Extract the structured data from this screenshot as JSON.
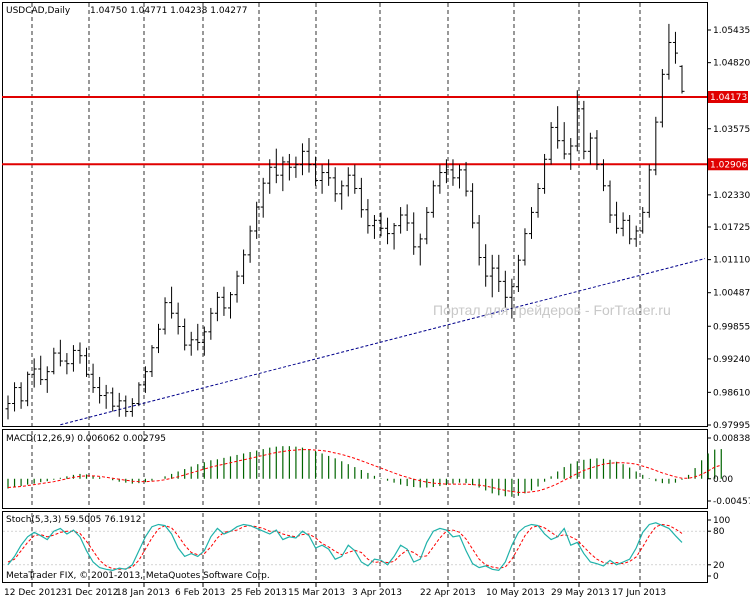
{
  "header": {
    "symbol_tf": "USDCAD,Daily",
    "ohlc": "1.04750 1.04771 1.04238 1.04277"
  },
  "watermark": "Портал для трейдеров - ForTrader.ru",
  "copyright": "MetaTrader FIX, © 2001-2013, MetaQuotes Software Corp.",
  "colors": {
    "background": "#ffffff",
    "bars": "#000000",
    "hlines": "#e00000",
    "trendline": "#00008b",
    "macd_hist": "#006400",
    "macd_signal": "#ff0000",
    "stoch_main": "#20b2aa",
    "stoch_signal": "#ff0000",
    "watermark": "#c8c8c8"
  },
  "chart_data": [
    {
      "type": "candlestick",
      "name": "USDCAD,Daily",
      "x_labels": [
        "12 Dec 2012",
        "31 Dec 2012",
        "18 Jan 2013",
        "6 Feb 2013",
        "25 Feb 2013",
        "15 Mar 2013",
        "3 Apr 2013",
        "22 Apr 2013",
        "10 May 2013",
        "29 May 2013",
        "17 Jun 2013"
      ],
      "y_ticks": [
        "1.05435",
        "1.04820",
        "1.03575",
        "1.02330",
        "1.01725",
        "1.01110",
        "1.00487",
        "0.99855",
        "0.99240",
        "0.98610",
        "0.97995"
      ],
      "ylim": [
        0.97995,
        1.05435
      ],
      "grid": true,
      "ohlc": [
        [
          0.983,
          0.9855,
          0.981,
          0.984
        ],
        [
          0.984,
          0.988,
          0.9825,
          0.987
        ],
        [
          0.987,
          0.988,
          0.983,
          0.9845
        ],
        [
          0.9845,
          0.99,
          0.9835,
          0.9895
        ],
        [
          0.9895,
          0.9925,
          0.987,
          0.9905
        ],
        [
          0.9905,
          0.993,
          0.9875,
          0.9885
        ],
        [
          0.9885,
          0.991,
          0.986,
          0.99
        ],
        [
          0.99,
          0.9945,
          0.9895,
          0.9935
        ],
        [
          0.9935,
          0.996,
          0.991,
          0.992
        ],
        [
          0.992,
          0.9935,
          0.9895,
          0.9915
        ],
        [
          0.9915,
          0.995,
          0.99,
          0.994
        ],
        [
          0.994,
          0.9955,
          0.9915,
          0.993
        ],
        [
          0.993,
          0.9945,
          0.989,
          0.9895
        ],
        [
          0.9895,
          0.9915,
          0.986,
          0.987
        ],
        [
          0.987,
          0.989,
          0.984,
          0.9855
        ],
        [
          0.9855,
          0.9875,
          0.983,
          0.986
        ],
        [
          0.986,
          0.987,
          0.9825,
          0.9835
        ],
        [
          0.9835,
          0.986,
          0.9815,
          0.9845
        ],
        [
          0.9845,
          0.9855,
          0.9815,
          0.9825
        ],
        [
          0.9825,
          0.985,
          0.9815,
          0.984
        ],
        [
          0.984,
          0.988,
          0.9835,
          0.9875
        ],
        [
          0.9875,
          0.991,
          0.986,
          0.99
        ],
        [
          0.99,
          0.995,
          0.989,
          0.9945
        ],
        [
          0.9945,
          0.999,
          0.9935,
          0.998
        ],
        [
          0.998,
          1.004,
          0.997,
          1.003
        ],
        [
          1.003,
          1.006,
          1.0,
          1.001
        ],
        [
          1.001,
          1.003,
          0.997,
          0.9985
        ],
        [
          0.9985,
          1.0,
          0.994,
          0.995
        ],
        [
          0.995,
          0.9975,
          0.993,
          0.996
        ],
        [
          0.996,
          0.999,
          0.994,
          0.9955
        ],
        [
          0.9955,
          0.9985,
          0.993,
          0.9975
        ],
        [
          0.9975,
          1.002,
          0.996,
          1.001
        ],
        [
          1.001,
          1.005,
          0.9995,
          1.004
        ],
        [
          1.004,
          1.006,
          1.0005,
          1.002
        ],
        [
          1.002,
          1.005,
          1.0,
          1.0045
        ],
        [
          1.0045,
          1.009,
          1.003,
          1.008
        ],
        [
          1.008,
          1.013,
          1.0065,
          1.012
        ],
        [
          1.012,
          1.0175,
          1.0105,
          1.0165
        ],
        [
          1.0165,
          1.022,
          1.015,
          1.021
        ],
        [
          1.021,
          1.0265,
          1.019,
          1.0255
        ],
        [
          1.0255,
          1.03,
          1.0235,
          1.0285
        ],
        [
          1.0285,
          1.032,
          1.0255,
          1.027
        ],
        [
          1.027,
          1.0305,
          1.024,
          1.0295
        ],
        [
          1.0295,
          1.031,
          1.026,
          1.0285
        ],
        [
          1.0285,
          1.0305,
          1.0265,
          1.029
        ],
        [
          1.029,
          1.033,
          1.027,
          1.0315
        ],
        [
          1.0315,
          1.034,
          1.0275,
          1.029
        ],
        [
          1.029,
          1.0305,
          1.025,
          1.026
        ],
        [
          1.026,
          1.029,
          1.0235,
          1.0275
        ],
        [
          1.0275,
          1.03,
          1.025,
          1.0265
        ],
        [
          1.0265,
          1.0285,
          1.022,
          1.0235
        ],
        [
          1.0235,
          1.026,
          1.0205,
          1.025
        ],
        [
          1.025,
          1.0285,
          1.023,
          1.027
        ],
        [
          1.027,
          1.029,
          1.0235,
          1.0245
        ],
        [
          1.0245,
          1.0265,
          1.019,
          1.0205
        ],
        [
          1.0205,
          1.0225,
          1.016,
          1.0175
        ],
        [
          1.0175,
          1.0195,
          1.015,
          1.0185
        ],
        [
          1.0185,
          1.02,
          1.0155,
          1.017
        ],
        [
          1.017,
          1.019,
          1.014,
          1.016
        ],
        [
          1.016,
          1.018,
          1.013,
          1.0175
        ],
        [
          1.0175,
          1.021,
          1.016,
          1.0195
        ],
        [
          1.0195,
          1.0215,
          1.0165,
          1.018
        ],
        [
          1.018,
          1.02,
          1.012,
          1.0135
        ],
        [
          1.0135,
          1.016,
          1.01,
          1.015
        ],
        [
          1.015,
          1.021,
          1.014,
          1.02
        ],
        [
          1.02,
          1.026,
          1.019,
          1.025
        ],
        [
          1.025,
          1.029,
          1.0235,
          1.0275
        ],
        [
          1.0275,
          1.03,
          1.0255,
          1.028
        ],
        [
          1.028,
          1.03,
          1.025,
          1.0265
        ],
        [
          1.0265,
          1.029,
          1.0245,
          1.028
        ],
        [
          1.028,
          1.0295,
          1.023,
          1.024
        ],
        [
          1.024,
          1.0255,
          1.017,
          1.018
        ],
        [
          1.018,
          1.0195,
          1.01,
          1.0115
        ],
        [
          1.0115,
          1.014,
          1.006,
          1.008
        ],
        [
          1.008,
          1.012,
          1.004,
          1.0095
        ],
        [
          1.0095,
          1.012,
          1.005,
          1.007
        ],
        [
          1.007,
          1.009,
          1.002,
          1.004
        ],
        [
          1.004,
          1.0075,
          1.0,
          1.006
        ],
        [
          1.006,
          1.012,
          1.005,
          1.011
        ],
        [
          1.011,
          1.017,
          1.01,
          1.016
        ],
        [
          1.016,
          1.021,
          1.015,
          1.02
        ],
        [
          1.02,
          1.0255,
          1.019,
          1.0245
        ],
        [
          1.0245,
          1.031,
          1.0235,
          1.03
        ],
        [
          1.03,
          1.037,
          1.029,
          1.036
        ],
        [
          1.036,
          1.04,
          1.032,
          1.0335
        ],
        [
          1.0335,
          1.037,
          1.03,
          1.031
        ],
        [
          1.031,
          1.034,
          1.028,
          1.0325
        ],
        [
          1.0325,
          1.043,
          1.0315,
          1.0395
        ],
        [
          1.0395,
          1.041,
          1.03,
          1.0315
        ],
        [
          1.0315,
          1.035,
          1.029,
          1.034
        ],
        [
          1.034,
          1.0355,
          1.028,
          1.029
        ],
        [
          1.029,
          1.03,
          1.024,
          1.025
        ],
        [
          1.025,
          1.026,
          1.018,
          1.0195
        ],
        [
          1.0195,
          1.022,
          1.016,
          1.017
        ],
        [
          1.017,
          1.02,
          1.0155,
          1.0185
        ],
        [
          1.0185,
          1.0195,
          1.014,
          1.015
        ],
        [
          1.015,
          1.0175,
          1.0135,
          1.0165
        ],
        [
          1.0165,
          1.021,
          1.016,
          1.02
        ],
        [
          1.02,
          1.029,
          1.019,
          1.028
        ],
        [
          1.028,
          1.038,
          1.027,
          1.037
        ],
        [
          1.037,
          1.047,
          1.036,
          1.046
        ],
        [
          1.046,
          1.0555,
          1.045,
          1.052
        ],
        [
          1.052,
          1.054,
          1.048,
          1.05
        ],
        [
          1.0475,
          1.0477,
          1.0424,
          1.0428
        ]
      ],
      "horizontal_lines": [
        {
          "label": "1.04173",
          "value": 1.04173
        },
        {
          "label": "1.02906",
          "value": 1.02906
        }
      ],
      "trendline": {
        "style": "dotted",
        "from": {
          "bar": 8,
          "price": 0.98
        },
        "to": {
          "bar": "end",
          "price": 1.0113
        }
      }
    },
    {
      "type": "bar+line",
      "name": "MACD(12,26,9) 0.006062 0.002795",
      "title_text": "MACD(12,26,9) 0.006062 0.002795",
      "y_ticks": [
        "0.00838",
        "0.00",
        "-0.00457"
      ],
      "ylim": [
        -0.00457,
        0.00838
      ],
      "histogram": [
        -0.002,
        -0.0018,
        -0.0015,
        -0.0012,
        -0.001,
        -0.0007,
        -0.0005,
        -0.0002,
        0.0002,
        0.0005,
        0.0008,
        0.001,
        0.0009,
        0.0006,
        0.0003,
        0.0,
        -0.0003,
        -0.0006,
        -0.0008,
        -0.001,
        -0.0009,
        -0.0007,
        -0.0004,
        0.0,
        0.0005,
        0.001,
        0.0015,
        0.002,
        0.0025,
        0.003,
        0.0034,
        0.0038,
        0.004,
        0.0043,
        0.0046,
        0.0049,
        0.0052,
        0.0055,
        0.0058,
        0.0061,
        0.0064,
        0.0066,
        0.0067,
        0.0067,
        0.0066,
        0.0064,
        0.0061,
        0.0057,
        0.0052,
        0.0047,
        0.0042,
        0.0036,
        0.003,
        0.0024,
        0.0018,
        0.0012,
        0.0006,
        0.0001,
        -0.0004,
        -0.0008,
        -0.0012,
        -0.0015,
        -0.0017,
        -0.0018,
        -0.0018,
        -0.0017,
        -0.0015,
        -0.0013,
        -0.001,
        -0.0008,
        -0.0009,
        -0.0013,
        -0.0018,
        -0.0024,
        -0.003,
        -0.0034,
        -0.0036,
        -0.0037,
        -0.0035,
        -0.003,
        -0.0024,
        -0.0016,
        -0.0006,
        0.0005,
        0.0015,
        0.0024,
        0.0031,
        0.0036,
        0.0039,
        0.0041,
        0.0042,
        0.0041,
        0.0039,
        0.0035,
        0.003,
        0.0023,
        0.0015,
        0.0008,
        0.0001,
        -0.0005,
        -0.0009,
        -0.001,
        -0.0008,
        -0.0002,
        0.0008,
        0.0022,
        0.0038,
        0.0052,
        0.006,
        0.0061
      ],
      "signal": [
        -0.0018,
        -0.0017,
        -0.0016,
        -0.0014,
        -0.0012,
        -0.001,
        -0.0008,
        -0.0006,
        -0.0003,
        0.0,
        0.0003,
        0.0005,
        0.0006,
        0.0006,
        0.0005,
        0.0003,
        0.0001,
        -0.0001,
        -0.0003,
        -0.0005,
        -0.0006,
        -0.0006,
        -0.0005,
        -0.0004,
        -0.0002,
        0.0001,
        0.0004,
        0.0008,
        0.0012,
        0.0016,
        0.002,
        0.0024,
        0.0027,
        0.003,
        0.0033,
        0.0036,
        0.0039,
        0.0042,
        0.0045,
        0.0048,
        0.0051,
        0.0054,
        0.0056,
        0.0058,
        0.0059,
        0.006,
        0.006,
        0.0059,
        0.0058,
        0.0056,
        0.0053,
        0.005,
        0.0046,
        0.0042,
        0.0037,
        0.0032,
        0.0027,
        0.0022,
        0.0017,
        0.0012,
        0.0007,
        0.0003,
        -0.0001,
        -0.0004,
        -0.0007,
        -0.0009,
        -0.001,
        -0.0011,
        -0.0011,
        -0.0011,
        -0.0011,
        -0.0012,
        -0.0013,
        -0.0015,
        -0.0018,
        -0.0021,
        -0.0024,
        -0.0026,
        -0.0028,
        -0.0028,
        -0.0027,
        -0.0025,
        -0.0021,
        -0.0016,
        -0.001,
        -0.0003,
        0.0004,
        0.0011,
        0.0017,
        0.0022,
        0.0026,
        0.003,
        0.0032,
        0.0033,
        0.0033,
        0.0032,
        0.003,
        0.0026,
        0.0022,
        0.0017,
        0.0012,
        0.0008,
        0.0004,
        0.0001,
        0.0001,
        0.0004,
        0.0009,
        0.0016,
        0.0024,
        0.0028
      ]
    },
    {
      "type": "line",
      "name": "Stoch(5,3,3) 59.5005 76.1912",
      "title_text": "Stoch(5,3,3) 59.5005 76.1912",
      "y_ticks": [
        "100",
        "80",
        "20",
        "0"
      ],
      "ylim": [
        0,
        100
      ],
      "series": [
        {
          "values": [
            20,
            35,
            55,
            70,
            78,
            72,
            65,
            80,
            85,
            75,
            82,
            70,
            45,
            25,
            15,
            12,
            10,
            14,
            12,
            20,
            45,
            70,
            88,
            92,
            90,
            75,
            50,
            35,
            40,
            35,
            45,
            70,
            85,
            75,
            80,
            88,
            92,
            90,
            85,
            80,
            75,
            82,
            65,
            70,
            68,
            80,
            72,
            50,
            55,
            48,
            30,
            35,
            55,
            45,
            25,
            18,
            30,
            28,
            20,
            35,
            55,
            48,
            25,
            30,
            60,
            80,
            85,
            82,
            70,
            72,
            45,
            22,
            15,
            18,
            12,
            10,
            25,
            55,
            78,
            88,
            92,
            90,
            75,
            65,
            70,
            85,
            55,
            60,
            40,
            25,
            22,
            18,
            28,
            20,
            25,
            30,
            50,
            78,
            92,
            95,
            90,
            85,
            72,
            60
          ]
        },
        {
          "values": [
            25,
            30,
            45,
            60,
            72,
            74,
            70,
            73,
            78,
            80,
            80,
            76,
            62,
            45,
            28,
            18,
            13,
            12,
            13,
            16,
            28,
            48,
            68,
            84,
            90,
            86,
            72,
            55,
            42,
            38,
            40,
            52,
            68,
            78,
            80,
            82,
            88,
            90,
            88,
            85,
            80,
            80,
            75,
            72,
            70,
            74,
            75,
            68,
            58,
            52,
            44,
            38,
            42,
            46,
            42,
            30,
            24,
            26,
            24,
            26,
            38,
            46,
            42,
            34,
            36,
            52,
            68,
            80,
            82,
            78,
            66,
            48,
            30,
            20,
            16,
            14,
            16,
            30,
            50,
            72,
            86,
            90,
            86,
            78,
            70,
            74,
            70,
            64,
            52,
            40,
            30,
            24,
            22,
            24,
            22,
            26,
            34,
            52,
            72,
            88,
            92,
            90,
            84,
            76
          ]
        }
      ]
    }
  ]
}
